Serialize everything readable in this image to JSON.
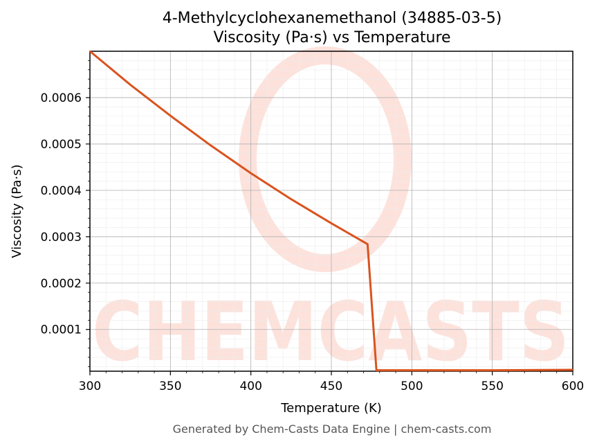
{
  "chart_data": {
    "type": "line",
    "title": "4-Methylcyclohexanemethanol (34885-03-5)",
    "subtitle": "Viscosity (Pa·s) vs Temperature",
    "xlabel": "Temperature (K)",
    "ylabel": "Viscosity (Pa·s)",
    "xlim": [
      300,
      600
    ],
    "ylim": [
      1e-05,
      0.0007
    ],
    "xticks": [
      "300",
      "350",
      "400",
      "450",
      "500",
      "550",
      "600"
    ],
    "yticks": [
      "0.0001",
      "0.0002",
      "0.0003",
      "0.0004",
      "0.0005",
      "0.0006"
    ],
    "grid": true,
    "series": [
      {
        "color": "#d9531e",
        "x": [
          300,
          325,
          350,
          375,
          400,
          425,
          450,
          472.5,
          478,
          500,
          550,
          600
        ],
        "y": [
          0.0007,
          0.000628,
          0.000561,
          0.000497,
          0.000437,
          0.000381,
          0.000329,
          0.000284,
          1.2e-05,
          1.2e-05,
          1.2e-05,
          1.3e-05
        ]
      }
    ]
  },
  "footer": "Generated by Chem-Casts Data Engine | chem-casts.com",
  "watermark": "CHEMCASTS"
}
